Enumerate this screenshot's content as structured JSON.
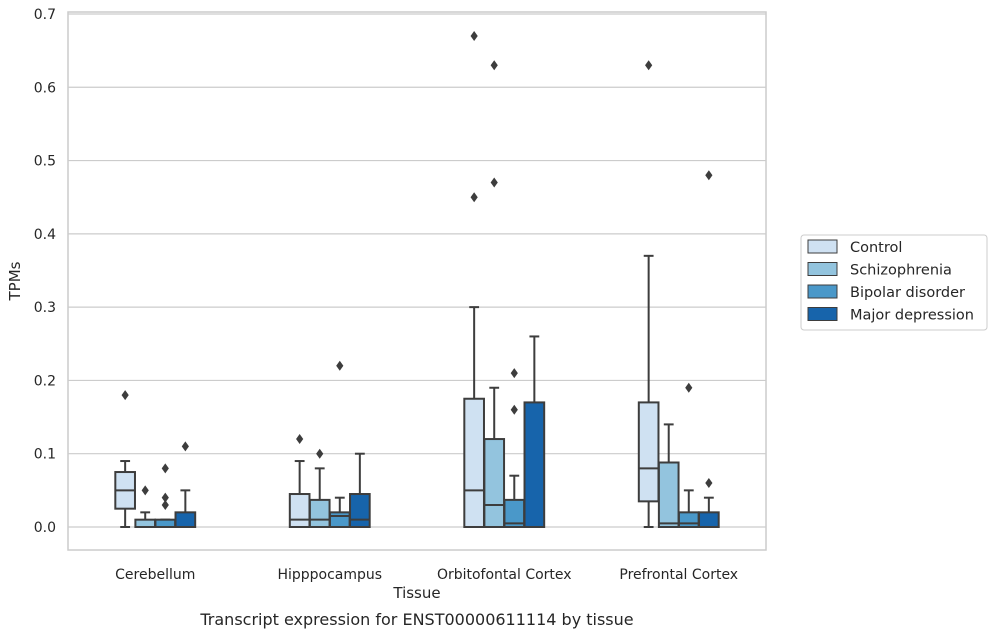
{
  "chart_data": {
    "type": "box",
    "caption": "Transcript expression for ENST00000611114 by tissue",
    "xlabel": "Tissue",
    "ylabel": "TPMs",
    "ylim": [
      -0.032,
      0.705
    ],
    "yticks": [
      0.0,
      0.1,
      0.2,
      0.3,
      0.4,
      0.5,
      0.6,
      0.7
    ],
    "ytick_labels": [
      "0.0",
      "0.1",
      "0.2",
      "0.3",
      "0.4",
      "0.5",
      "0.6",
      "0.7"
    ],
    "grid": "horizontal",
    "legend_position": "right",
    "categories": [
      "Cerebellum",
      "Hipppocampus",
      "Orbitofontal Cortex",
      "Prefrontal Cortex"
    ],
    "series": [
      {
        "name": "Control",
        "color": "#cfe1f2",
        "boxes": [
          {
            "whislo": 0.0,
            "q1": 0.025,
            "med": 0.05,
            "q3": 0.075,
            "whishi": 0.09,
            "fliers": [
              0.18
            ]
          },
          {
            "whislo": 0.0,
            "q1": 0.0,
            "med": 0.01,
            "q3": 0.045,
            "whishi": 0.09,
            "fliers": [
              0.12
            ]
          },
          {
            "whislo": 0.0,
            "q1": 0.0,
            "med": 0.05,
            "q3": 0.175,
            "whishi": 0.3,
            "fliers": [
              0.45,
              0.67
            ]
          },
          {
            "whislo": 0.0,
            "q1": 0.035,
            "med": 0.08,
            "q3": 0.17,
            "whishi": 0.37,
            "fliers": [
              0.63
            ]
          }
        ]
      },
      {
        "name": "Schizophrenia",
        "color": "#93c4de",
        "boxes": [
          {
            "whislo": 0.0,
            "q1": 0.0,
            "med": 0.0,
            "q3": 0.01,
            "whishi": 0.02,
            "fliers": [
              0.05
            ]
          },
          {
            "whislo": 0.0,
            "q1": 0.0,
            "med": 0.01,
            "q3": 0.037,
            "whishi": 0.08,
            "fliers": [
              0.1
            ]
          },
          {
            "whislo": 0.0,
            "q1": 0.0,
            "med": 0.03,
            "q3": 0.12,
            "whishi": 0.19,
            "fliers": [
              0.47,
              0.63
            ]
          },
          {
            "whislo": 0.0,
            "q1": 0.0,
            "med": 0.005,
            "q3": 0.088,
            "whishi": 0.14,
            "fliers": []
          }
        ]
      },
      {
        "name": "Bipolar disorder",
        "color": "#4a98c9",
        "boxes": [
          {
            "whislo": 0.0,
            "q1": 0.0,
            "med": 0.0,
            "q3": 0.01,
            "whishi": 0.01,
            "fliers": [
              0.03,
              0.04,
              0.08
            ]
          },
          {
            "whislo": 0.0,
            "q1": 0.0,
            "med": 0.015,
            "q3": 0.02,
            "whishi": 0.04,
            "fliers": [
              0.22
            ]
          },
          {
            "whislo": 0.0,
            "q1": 0.0,
            "med": 0.005,
            "q3": 0.037,
            "whishi": 0.07,
            "fliers": [
              0.16,
              0.21
            ]
          },
          {
            "whislo": 0.0,
            "q1": 0.0,
            "med": 0.005,
            "q3": 0.02,
            "whishi": 0.05,
            "fliers": [
              0.19
            ]
          }
        ]
      },
      {
        "name": "Major depression",
        "color": "#1764ab",
        "boxes": [
          {
            "whislo": 0.0,
            "q1": 0.0,
            "med": 0.0,
            "q3": 0.02,
            "whishi": 0.05,
            "fliers": [
              0.11
            ]
          },
          {
            "whislo": 0.0,
            "q1": 0.0,
            "med": 0.01,
            "q3": 0.045,
            "whishi": 0.1,
            "fliers": []
          },
          {
            "whislo": 0.0,
            "q1": 0.0,
            "med": 0.0,
            "q3": 0.17,
            "whishi": 0.26,
            "fliers": []
          },
          {
            "whislo": 0.0,
            "q1": 0.0,
            "med": 0.0,
            "q3": 0.02,
            "whishi": 0.04,
            "fliers": [
              0.06,
              0.48
            ]
          }
        ]
      }
    ]
  }
}
